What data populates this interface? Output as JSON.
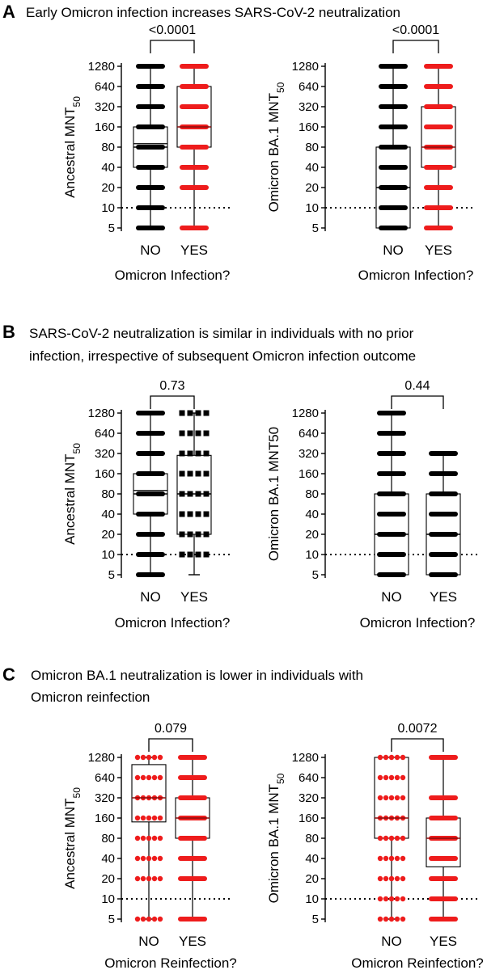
{
  "panels": [
    {
      "letter": "A",
      "title_lines": [
        "Early Omicron infection increases SARS-CoV-2 neutralization"
      ]
    },
    {
      "letter": "B",
      "title_lines": [
        "SARS-CoV-2 neutralization is similar in individuals with no prior",
        "infection, irrespective of subsequent Omicron infection outcome"
      ]
    },
    {
      "letter": "C",
      "title_lines": [
        "Omicron BA.1 neutralization is lower in individuals with",
        "Omicron reinfection"
      ]
    }
  ],
  "colors": {
    "black": "#000000",
    "red": "#ee1c1c",
    "dark_red": "#cc1111"
  },
  "chart_data": [
    {
      "type": "box",
      "panel": "A",
      "ylabel": "Ancestral MNT",
      "ylabel_sub": "50",
      "xlabel": "Omicron Infection?",
      "categories": [
        "NO",
        "YES"
      ],
      "y_scale": "log2",
      "yticks": [
        5,
        10,
        20,
        40,
        80,
        160,
        320,
        640,
        1280
      ],
      "ylim": [
        5,
        1280
      ],
      "threshold": 10,
      "p_value": "<0.0001",
      "boxes": [
        {
          "category": "NO",
          "color": "black",
          "style": "bar",
          "q1": 40,
          "median": 80,
          "mean": 90,
          "q3": 160,
          "min": 5,
          "max": 1280,
          "points": [
            5,
            10,
            20,
            40,
            80,
            160,
            320,
            640,
            1280
          ]
        },
        {
          "category": "YES",
          "color": "red",
          "style": "bar",
          "q1": 80,
          "median": 160,
          "q3": 640,
          "min": 5,
          "max": 1280,
          "points": [
            5,
            20,
            40,
            80,
            160,
            320,
            640,
            1280
          ]
        }
      ]
    },
    {
      "type": "box",
      "panel": "A",
      "ylabel": "Omicron BA.1 MNT",
      "ylabel_sub": "50",
      "xlabel": "Omicron Infection?",
      "categories": [
        "NO",
        "YES"
      ],
      "y_scale": "log2",
      "yticks": [
        5,
        10,
        20,
        40,
        80,
        160,
        320,
        640,
        1280
      ],
      "ylim": [
        5,
        1280
      ],
      "threshold": 10,
      "p_value": "<0.0001",
      "boxes": [
        {
          "category": "NO",
          "color": "black",
          "style": "bar",
          "q1": 5,
          "median": 20,
          "q3": 80,
          "min": 5,
          "max": 1280,
          "points": [
            5,
            10,
            20,
            40,
            80,
            160,
            320,
            640,
            1280
          ]
        },
        {
          "category": "YES",
          "color": "red",
          "style": "bar",
          "q1": 40,
          "median": 80,
          "q3": 320,
          "min": 5,
          "max": 1280,
          "points": [
            5,
            10,
            20,
            40,
            80,
            160,
            320,
            640,
            1280
          ]
        }
      ]
    },
    {
      "type": "box",
      "panel": "B",
      "ylabel": "Ancestral MNT",
      "ylabel_sub": "50",
      "xlabel": "Omicron Infection?",
      "categories": [
        "NO",
        "YES"
      ],
      "y_scale": "log2",
      "yticks": [
        5,
        10,
        20,
        40,
        80,
        160,
        320,
        640,
        1280
      ],
      "ylim": [
        5,
        1280
      ],
      "threshold": 10,
      "p_value": "0.73",
      "boxes": [
        {
          "category": "NO",
          "color": "black",
          "style": "bar",
          "q1": 40,
          "median": 80,
          "mean": 90,
          "q3": 160,
          "min": 5,
          "max": 1280,
          "points": [
            5,
            10,
            20,
            40,
            80,
            160,
            320,
            640,
            1280
          ]
        },
        {
          "category": "YES",
          "color": "black",
          "style": "dash",
          "q1": 20,
          "median": 80,
          "q3": 300,
          "min": 5,
          "max": 1280,
          "points": [
            10,
            20,
            40,
            80,
            160,
            320,
            640,
            1280
          ]
        }
      ]
    },
    {
      "type": "box",
      "panel": "B",
      "ylabel": "Omicron BA.1 MNT50",
      "ylabel_sub": "",
      "xlabel": "Omicron Infection?",
      "categories": [
        "NO",
        "YES"
      ],
      "y_scale": "log2",
      "yticks": [
        5,
        10,
        20,
        40,
        80,
        160,
        320,
        640,
        1280
      ],
      "ylim": [
        5,
        1280
      ],
      "threshold": 10,
      "p_value": "0.44",
      "boxes": [
        {
          "category": "NO",
          "color": "black",
          "style": "bar",
          "q1": 5,
          "median": 20,
          "q3": 80,
          "min": 5,
          "max": 1280,
          "points": [
            5,
            10,
            20,
            40,
            80,
            160,
            320,
            640,
            1280
          ]
        },
        {
          "category": "YES",
          "color": "black",
          "style": "bar",
          "q1": 5,
          "median": 20,
          "q3": 80,
          "min": 5,
          "max": 320,
          "points": [
            5,
            10,
            20,
            40,
            80,
            160,
            320
          ]
        }
      ]
    },
    {
      "type": "box",
      "panel": "C",
      "ylabel": "Ancestral MNT",
      "ylabel_sub": "50",
      "xlabel": "Omicron Reinfection?",
      "categories": [
        "NO",
        "YES"
      ],
      "y_scale": "log2",
      "yticks": [
        5,
        10,
        20,
        40,
        80,
        160,
        320,
        640,
        1280
      ],
      "ylim": [
        5,
        1280
      ],
      "threshold": 10,
      "p_value": "0.079",
      "boxes": [
        {
          "category": "NO",
          "color": "red",
          "style": "dots",
          "q1": 140,
          "median": 320,
          "q3": 1000,
          "min": 5,
          "max": 1280,
          "points": [
            5,
            20,
            40,
            80,
            160,
            320,
            640,
            1280
          ]
        },
        {
          "category": "YES",
          "color": "red",
          "style": "bar",
          "q1": 80,
          "median": 160,
          "q3": 320,
          "min": 5,
          "max": 1280,
          "points": [
            5,
            20,
            40,
            80,
            160,
            320,
            640,
            1280
          ]
        }
      ]
    },
    {
      "type": "box",
      "panel": "C",
      "ylabel": "Omicron BA.1 MNT",
      "ylabel_sub": "50",
      "xlabel": "Omicron Reinfection?",
      "categories": [
        "NO",
        "YES"
      ],
      "y_scale": "log2",
      "yticks": [
        5,
        10,
        20,
        40,
        80,
        160,
        320,
        640,
        1280
      ],
      "ylim": [
        5,
        1280
      ],
      "threshold": 10,
      "p_value": "0.0072",
      "boxes": [
        {
          "category": "NO",
          "color": "red",
          "style": "dots",
          "q1": 80,
          "median": 160,
          "q3": 1280,
          "min": 5,
          "max": 1280,
          "points": [
            5,
            10,
            20,
            40,
            80,
            160,
            320,
            640,
            1280
          ]
        },
        {
          "category": "YES",
          "color": "red",
          "style": "bar",
          "q1": 30,
          "median": 80,
          "q3": 160,
          "min": 5,
          "max": 1280,
          "points": [
            5,
            10,
            20,
            40,
            80,
            160,
            320,
            1280
          ]
        }
      ]
    }
  ]
}
